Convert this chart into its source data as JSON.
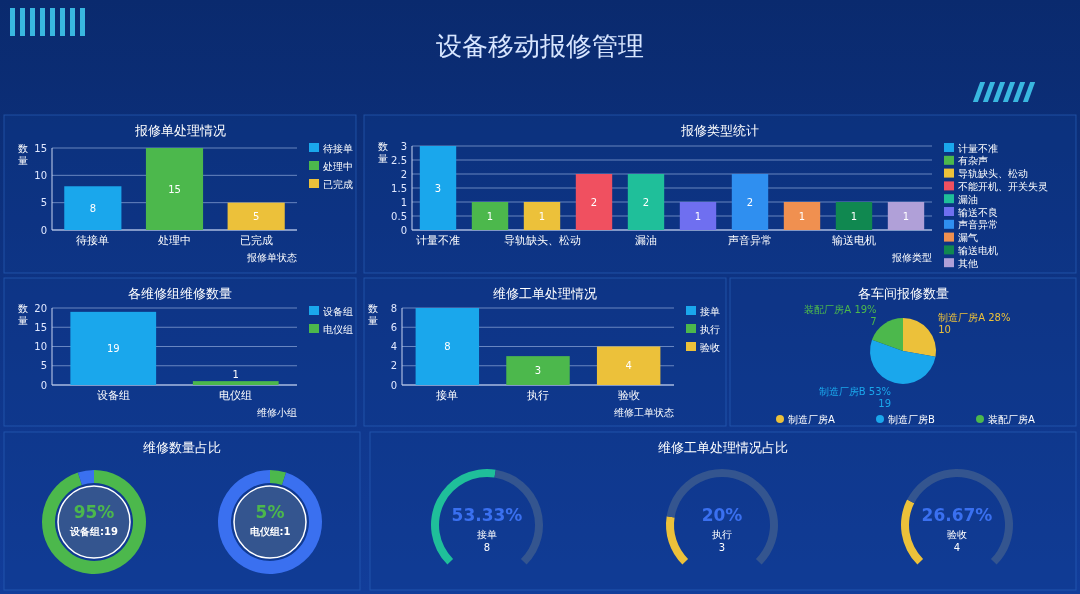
{
  "chart_data": [
    {
      "type": "other",
      "title": "设备移动报修管理"
    },
    {
      "type": "bar",
      "title": "报修单处理情况",
      "ylabel": "数量",
      "xlabel": "报修单状态",
      "categories": [
        "待接单",
        "处理中",
        "已完成"
      ],
      "series": [
        {
          "name": "待接单",
          "color": "#1aa7ec",
          "values": [
            8,
            null,
            null
          ]
        },
        {
          "name": "处理中",
          "color": "#4cb84c",
          "values": [
            null,
            15,
            null
          ]
        },
        {
          "name": "已完成",
          "color": "#ecc13a",
          "values": [
            null,
            null,
            5
          ]
        }
      ],
      "ylim": [
        0,
        15
      ],
      "yticks": [
        0,
        5,
        10,
        15
      ],
      "grid": "y",
      "legend": "right",
      "data_labels": true
    },
    {
      "type": "bar",
      "title": "报修类型统计",
      "ylabel": "数量",
      "xlabel": "报修类型",
      "categories": [
        "计量不准",
        null,
        "导轨缺头、松动",
        null,
        "漏油",
        null,
        "声音异常",
        null,
        "输送电机",
        null
      ],
      "series": [
        {
          "name": "计量不准",
          "color": "#1aa7ec",
          "values": [
            3,
            null,
            null,
            null,
            null,
            null,
            null,
            null,
            null,
            null
          ]
        },
        {
          "name": "有杂声",
          "color": "#4cb84c",
          "values": [
            null,
            1,
            null,
            null,
            null,
            null,
            null,
            null,
            null,
            null
          ]
        },
        {
          "name": "导轨缺头、松动",
          "color": "#ecc13a",
          "values": [
            null,
            null,
            1,
            null,
            null,
            null,
            null,
            null,
            null,
            null
          ]
        },
        {
          "name": "不能开机、开关失灵",
          "color": "#f05060",
          "values": [
            null,
            null,
            null,
            2,
            null,
            null,
            null,
            null,
            null,
            null
          ]
        },
        {
          "name": "漏油",
          "color": "#1fbf9a",
          "values": [
            null,
            null,
            null,
            null,
            2,
            null,
            null,
            null,
            null,
            null
          ]
        },
        {
          "name": "输送不良",
          "color": "#6f6ff0",
          "values": [
            null,
            null,
            null,
            null,
            null,
            1,
            null,
            null,
            null,
            null
          ]
        },
        {
          "name": "声音异常",
          "color": "#2f8ff0",
          "values": [
            null,
            null,
            null,
            null,
            null,
            null,
            2,
            null,
            null,
            null
          ]
        },
        {
          "name": "漏气",
          "color": "#f09050",
          "values": [
            null,
            null,
            null,
            null,
            null,
            null,
            null,
            1,
            null,
            null
          ]
        },
        {
          "name": "输送电机",
          "color": "#108850",
          "values": [
            null,
            null,
            null,
            null,
            null,
            null,
            null,
            null,
            1,
            null
          ]
        },
        {
          "name": "其他",
          "color": "#b0a0d8",
          "values": [
            null,
            null,
            null,
            null,
            null,
            null,
            null,
            null,
            null,
            1
          ]
        }
      ],
      "ylim": [
        0,
        3
      ],
      "yticks": [
        0,
        0.5,
        1,
        1.5,
        2,
        2.5,
        3
      ],
      "grid": "y",
      "legend": "right",
      "data_labels": true
    },
    {
      "type": "bar",
      "title": "各维修组维修数量",
      "ylabel": "数量",
      "xlabel": "维修小组",
      "categories": [
        "设备组",
        "电仪组"
      ],
      "series": [
        {
          "name": "设备组",
          "color": "#1aa7ec",
          "values": [
            19,
            null
          ]
        },
        {
          "name": "电仪组",
          "color": "#4cb84c",
          "values": [
            null,
            1
          ]
        }
      ],
      "ylim": [
        0,
        20
      ],
      "yticks": [
        0,
        5,
        10,
        15,
        20
      ],
      "grid": "y",
      "legend": "right",
      "data_labels": true
    },
    {
      "type": "bar",
      "title": "维修工单处理情况",
      "ylabel": "数量",
      "xlabel": "维修工单状态",
      "categories": [
        "接单",
        "执行",
        "验收"
      ],
      "series": [
        {
          "name": "接单",
          "color": "#1aa7ec",
          "values": [
            8,
            null,
            null
          ]
        },
        {
          "name": "执行",
          "color": "#4cb84c",
          "values": [
            null,
            3,
            null
          ]
        },
        {
          "name": "验收",
          "color": "#ecc13a",
          "values": [
            null,
            null,
            4
          ]
        }
      ],
      "ylim": [
        0,
        8
      ],
      "yticks": [
        0,
        2,
        4,
        6,
        8
      ],
      "grid": "y",
      "legend": "right",
      "data_labels": true
    },
    {
      "type": "pie",
      "title": "各车间报修数量",
      "categories": [
        "制造厂房A",
        "制造厂房B",
        "装配厂房A"
      ],
      "values": [
        10,
        19,
        7
      ],
      "annotations": [
        "28%",
        "53%",
        "19%"
      ],
      "colors": [
        "#ecc13a",
        "#1aa7ec",
        "#4cb84c"
      ],
      "legend": "bottom",
      "data_labels": true
    },
    {
      "type": "donut",
      "title": "维修数量占比",
      "categories": [
        "设备组:19",
        null
      ],
      "values": [
        95,
        5
      ],
      "value_labels": [
        "95%",
        null
      ],
      "colors": [
        "#4cb84c",
        "#3a70f0"
      ]
    },
    {
      "type": "donut",
      "categories": [
        "电仪组:1",
        null
      ],
      "values": [
        5,
        95
      ],
      "value_labels": [
        "5%",
        null
      ],
      "colors": [
        "#4cb84c",
        "#3a70f0"
      ]
    },
    {
      "type": "donut",
      "categories": [
        null,
        null
      ],
      "values": [
        53.33,
        46.67
      ],
      "annotations": [
        "53.33%",
        "接单",
        "8"
      ],
      "colors": [
        "#1fbf9a",
        "#34558f"
      ]
    },
    {
      "type": "donut",
      "title": "维修工单处理情况占比",
      "categories": [
        null,
        null
      ],
      "values": [
        20,
        80
      ],
      "annotations": [
        "20%",
        "执行",
        "3"
      ],
      "colors": [
        "#ecc13a",
        "#34558f"
      ]
    },
    {
      "type": "donut",
      "categories": [
        null,
        null
      ],
      "values": [
        26.67,
        73.33
      ],
      "annotations": [
        "26.67%",
        "验收",
        "4"
      ],
      "colors": [
        "#ecc13a",
        "#34558f"
      ]
    }
  ]
}
